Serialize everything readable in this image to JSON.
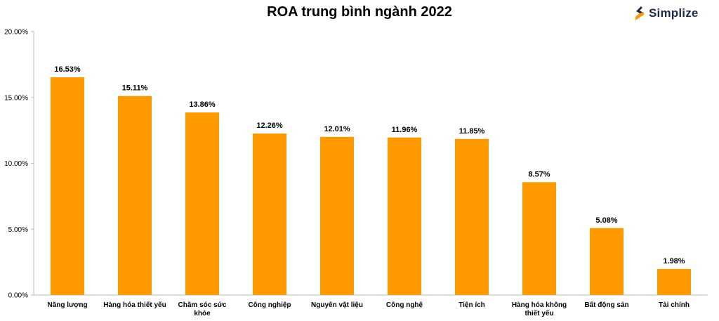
{
  "chart_data": {
    "type": "bar",
    "title": "ROA trung bình ngành 2022",
    "categories": [
      "Năng lượng",
      "Hàng hóa thiết yếu",
      "Chăm sóc sức khỏe",
      "Công nghiệp",
      "Nguyên vật liệu",
      "Công nghệ",
      "Tiện ích",
      "Hàng hóa không thiết yếu",
      "Bất động sản",
      "Tài chính"
    ],
    "values": [
      16.53,
      15.11,
      13.86,
      12.26,
      12.01,
      11.96,
      11.85,
      8.57,
      5.08,
      1.98
    ],
    "data_labels": [
      "16.53%",
      "15.11%",
      "13.86%",
      "12.26%",
      "12.01%",
      "11.96%",
      "11.85%",
      "8.57%",
      "5.08%",
      "1.98%"
    ],
    "y_ticks": [
      "0.00%",
      "5.00%",
      "10.00%",
      "15.00%",
      "20.00%"
    ],
    "ylim": [
      0,
      20
    ],
    "xlabel": "",
    "ylabel": "",
    "grid": false,
    "bar_color": "#FF9900"
  },
  "logo": {
    "text": "Simplize",
    "icon": "simplize-logo-icon",
    "color_dark": "#1c2b4a",
    "color_accent": "#ff9900"
  }
}
